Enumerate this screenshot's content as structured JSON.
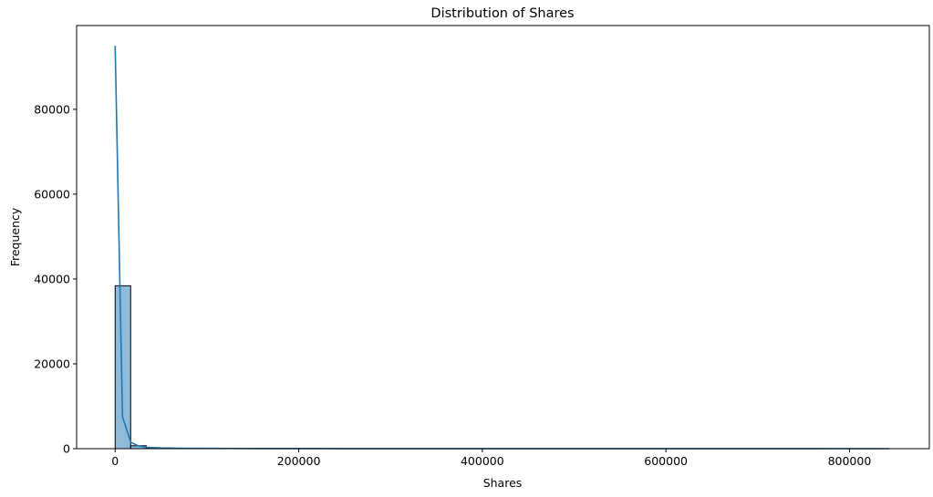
{
  "chart_data": {
    "type": "bar",
    "subtype": "histogram-with-kde",
    "title": "Distribution of Shares",
    "xlabel": "Shares",
    "ylabel": "Frequency",
    "xlim": [
      -42000,
      887000
    ],
    "ylim": [
      0,
      99750
    ],
    "x_ticks": [
      {
        "value": 0,
        "label": "0"
      },
      {
        "value": 200000,
        "label": "200000"
      },
      {
        "value": 400000,
        "label": "400000"
      },
      {
        "value": 600000,
        "label": "600000"
      },
      {
        "value": 800000,
        "label": "800000"
      }
    ],
    "y_ticks": [
      {
        "value": 0,
        "label": "0"
      },
      {
        "value": 20000,
        "label": "20000"
      },
      {
        "value": 40000,
        "label": "40000"
      },
      {
        "value": 60000,
        "label": "60000"
      },
      {
        "value": 80000,
        "label": "80000"
      }
    ],
    "bin_start": 1,
    "bin_width": 16900,
    "counts": [
      38400,
      690,
      130,
      60,
      35,
      25,
      15,
      10,
      8,
      5,
      4,
      3,
      3,
      2,
      2,
      2,
      1,
      1,
      1,
      1,
      1,
      1,
      1,
      1,
      0,
      0,
      0,
      0,
      0,
      0,
      0,
      0,
      0,
      0,
      0,
      0,
      0,
      0,
      0,
      0,
      0,
      0,
      0,
      0,
      0,
      0,
      0,
      0,
      0,
      1
    ],
    "kde": {
      "x": [
        1,
        8000,
        17000,
        26000,
        35000,
        50000,
        70000,
        100000,
        150000,
        250000,
        400000,
        600000,
        843300
      ],
      "y": [
        95000,
        7500,
        1500,
        600,
        320,
        180,
        110,
        70,
        40,
        20,
        10,
        5,
        2
      ]
    },
    "grid": false,
    "bar_color": "#1f77b4",
    "bar_alpha": 0.5,
    "bar_edge_color": "#000000",
    "line_color": "#1f77b4"
  }
}
